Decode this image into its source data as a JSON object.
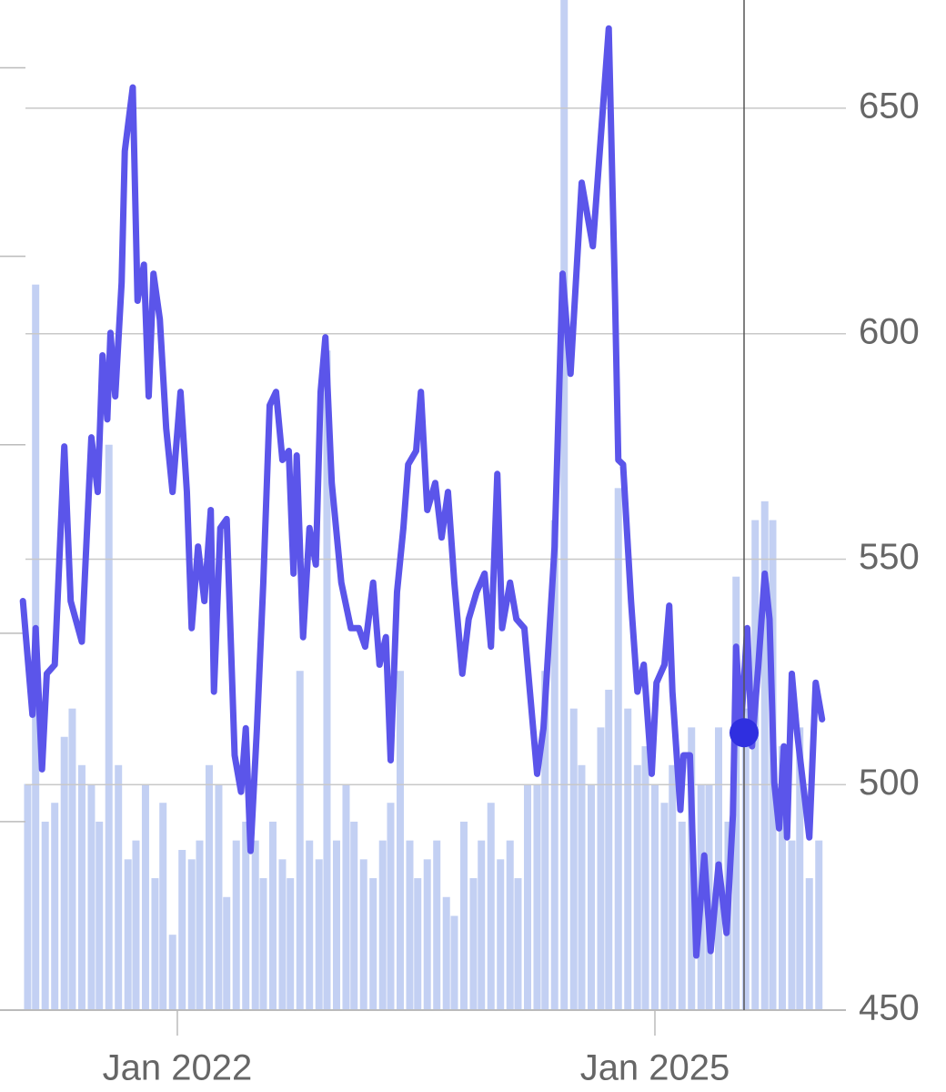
{
  "chart_data": {
    "type": "line",
    "xlim": [
      2021.046,
      2026.2
    ],
    "ylim": [
      450,
      674
    ],
    "y2lim": [
      0,
      5.36
    ],
    "yticks": [
      450,
      500,
      550,
      600,
      650
    ],
    "y2ticks": [
      0,
      1,
      2,
      3,
      4,
      5
    ],
    "xticks": [
      {
        "value": 2022,
        "label": "Jan 2022"
      },
      {
        "value": 2025,
        "label": "Jan 2025"
      }
    ],
    "grid": true,
    "highlight": {
      "x": 2025.56,
      "value": 511.5,
      "color": "#2f2fe0"
    },
    "series": [
      {
        "type": "bar",
        "axis": "y2",
        "color": "#c3d0f3",
        "x": [
          2021.06,
          2021.11,
          2021.17,
          2021.23,
          2021.29,
          2021.34,
          2021.4,
          2021.46,
          2021.51,
          2021.57,
          2021.63,
          2021.69,
          2021.74,
          2021.8,
          2021.86,
          2021.91,
          2021.97,
          2022.03,
          2022.09,
          2022.14,
          2022.2,
          2022.26,
          2022.31,
          2022.37,
          2022.43,
          2022.49,
          2022.54,
          2022.6,
          2022.66,
          2022.71,
          2022.77,
          2022.83,
          2022.89,
          2022.94,
          2023.0,
          2023.06,
          2023.11,
          2023.17,
          2023.23,
          2023.29,
          2023.34,
          2023.4,
          2023.46,
          2023.51,
          2023.57,
          2023.63,
          2023.69,
          2023.74,
          2023.8,
          2023.86,
          2023.91,
          2023.97,
          2024.03,
          2024.09,
          2024.14,
          2024.2,
          2024.26,
          2024.31,
          2024.37,
          2024.43,
          2024.49,
          2024.54,
          2024.6,
          2024.66,
          2024.71,
          2024.77,
          2024.83,
          2024.89,
          2024.94,
          2025.0,
          2025.06,
          2025.11,
          2025.17,
          2025.23,
          2025.29,
          2025.34,
          2025.4,
          2025.46,
          2025.51,
          2025.57,
          2025.63,
          2025.69,
          2025.74,
          2025.8,
          2025.86,
          2025.91,
          2025.97,
          2026.03
        ],
        "values": [
          1.2,
          3.85,
          1.0,
          1.1,
          1.45,
          1.6,
          1.3,
          1.2,
          1.0,
          3.0,
          1.3,
          0.8,
          0.9,
          1.2,
          0.7,
          1.1,
          0.4,
          0.85,
          0.8,
          0.9,
          1.3,
          1.2,
          0.6,
          0.9,
          1.0,
          0.9,
          0.7,
          1.0,
          0.8,
          0.7,
          1.8,
          0.9,
          0.8,
          3.5,
          0.9,
          1.2,
          1.0,
          0.8,
          0.7,
          0.9,
          1.1,
          1.8,
          0.9,
          0.7,
          0.8,
          0.9,
          0.6,
          0.5,
          1.0,
          0.7,
          0.9,
          1.1,
          0.8,
          0.9,
          0.7,
          1.2,
          1.2,
          1.8,
          2.6,
          5.4,
          1.6,
          1.3,
          1.2,
          1.5,
          1.7,
          2.77,
          1.6,
          1.3,
          1.4,
          1.2,
          1.1,
          1.3,
          1.0,
          1.5,
          1.2,
          1.2,
          1.5,
          1.0,
          2.3,
          1.6,
          2.6,
          2.7,
          2.6,
          1.4,
          0.9,
          1.5,
          0.7,
          0.9
        ]
      },
      {
        "type": "line",
        "color": "#5b55ea",
        "x": [
          2021.03,
          2021.09,
          2021.11,
          2021.15,
          2021.18,
          2021.23,
          2021.29,
          2021.33,
          2021.4,
          2021.46,
          2021.5,
          2021.53,
          2021.56,
          2021.58,
          2021.61,
          2021.65,
          2021.67,
          2021.72,
          2021.75,
          2021.79,
          2021.82,
          2021.85,
          2021.89,
          2021.93,
          2021.97,
          2022.02,
          2022.06,
          2022.09,
          2022.13,
          2022.17,
          2022.21,
          2022.23,
          2022.27,
          2022.31,
          2022.36,
          2022.4,
          2022.43,
          2022.46,
          2022.5,
          2022.54,
          2022.58,
          2022.62,
          2022.66,
          2022.7,
          2022.73,
          2022.75,
          2022.79,
          2022.83,
          2022.87,
          2022.9,
          2022.93,
          2022.97,
          2023.03,
          2023.09,
          2023.14,
          2023.18,
          2023.23,
          2023.27,
          2023.31,
          2023.34,
          2023.38,
          2023.42,
          2023.45,
          2023.5,
          2023.53,
          2023.57,
          2023.62,
          2023.66,
          2023.7,
          2023.74,
          2023.79,
          2023.83,
          2023.88,
          2023.93,
          2023.97,
          2024.01,
          2024.04,
          2024.09,
          2024.13,
          2024.18,
          2024.26,
          2024.3,
          2024.37,
          2024.42,
          2024.47,
          2024.54,
          2024.61,
          2024.66,
          2024.71,
          2024.75,
          2024.77,
          2024.8,
          2024.85,
          2024.89,
          2024.93,
          2024.98,
          2025.01,
          2025.06,
          2025.09,
          2025.11,
          2025.16,
          2025.18,
          2025.22,
          2025.26,
          2025.31,
          2025.35,
          2025.4,
          2025.45,
          2025.49,
          2025.51,
          2025.54,
          2025.58,
          2025.61,
          2025.65,
          2025.69,
          2025.72,
          2025.75,
          2025.78,
          2025.81,
          2025.83,
          2025.86,
          2025.89,
          2025.93,
          2025.97,
          2026.01,
          2026.05
        ],
        "values": [
          540.7,
          515.5,
          534.7,
          503.4,
          524.6,
          526.6,
          575.0,
          540.7,
          531.7,
          577.0,
          564.9,
          595.2,
          581.0,
          600.2,
          586.1,
          611.3,
          640.5,
          654.6,
          607.3,
          615.3,
          586.1,
          613.3,
          603.2,
          579.0,
          564.9,
          587.1,
          564.9,
          534.7,
          552.8,
          540.7,
          560.9,
          520.6,
          556.9,
          558.9,
          506.5,
          498.4,
          512.5,
          485.3,
          512.5,
          544.8,
          584.1,
          587.1,
          572.0,
          574.0,
          546.8,
          573.0,
          532.7,
          556.9,
          548.8,
          587.1,
          599.2,
          566.9,
          544.8,
          534.7,
          534.7,
          530.6,
          544.8,
          526.6,
          532.7,
          505.4,
          542.7,
          556.9,
          571.0,
          574.0,
          587.1,
          560.9,
          566.9,
          554.8,
          564.9,
          544.8,
          524.6,
          536.7,
          542.7,
          546.8,
          530.6,
          568.9,
          534.7,
          544.8,
          536.7,
          534.7,
          502.4,
          512.5,
          552.8,
          613.3,
          591.1,
          633.5,
          619.4,
          643.5,
          667.7,
          607.3,
          572.0,
          571.0,
          540.7,
          520.6,
          526.6,
          502.4,
          522.6,
          526.6,
          539.7,
          520.6,
          494.4,
          506.5,
          506.5,
          462.1,
          484.3,
          463.1,
          482.3,
          467.1,
          493.3,
          530.6,
          512.5,
          534.7,
          508.5,
          526.6,
          546.8,
          536.7,
          500.4,
          490.3,
          508.5,
          488.3,
          524.6,
          512.5,
          500.4,
          488.3,
          522.6,
          514.5
        ]
      }
    ]
  }
}
